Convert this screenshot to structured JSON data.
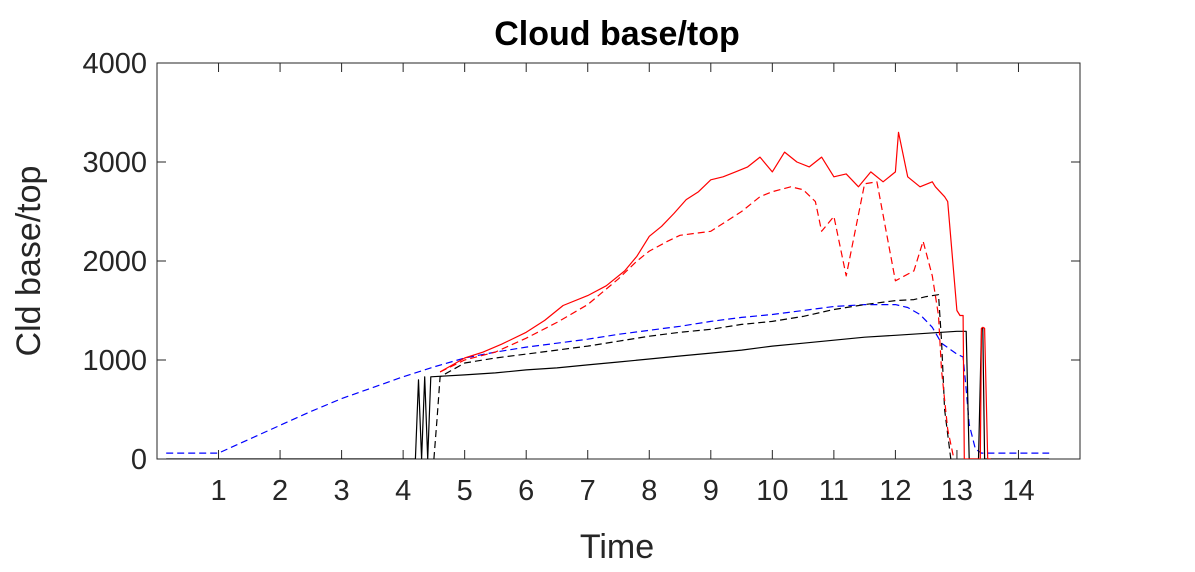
{
  "chart_data": {
    "type": "line",
    "title": "Cloud base/top",
    "xlabel": "Time",
    "ylabel": "Cld base/top",
    "xlim": [
      0,
      15
    ],
    "ylim": [
      0,
      4000
    ],
    "xticks": [
      1,
      2,
      3,
      4,
      5,
      6,
      7,
      8,
      9,
      10,
      11,
      12,
      13,
      14
    ],
    "yticks": [
      0,
      1000,
      2000,
      3000,
      4000
    ],
    "grid": false,
    "legend": "none",
    "series": [
      {
        "color": "#0000ff",
        "style": "dashed",
        "x": [
          0.15,
          1.0,
          1.5,
          2.0,
          2.5,
          3.0,
          3.5,
          4.0,
          4.5,
          5.0,
          5.5,
          6.0,
          6.5,
          7.0,
          7.5,
          8.0,
          8.5,
          9.0,
          9.5,
          10.0,
          10.5,
          11.0,
          11.5,
          12.0,
          12.2,
          12.4,
          12.6,
          12.75,
          13.0,
          13.1,
          13.15,
          13.2,
          13.3,
          13.4,
          13.5,
          14.0,
          14.5
        ],
        "y": [
          60,
          60,
          200,
          340,
          480,
          610,
          720,
          830,
          930,
          1020,
          1080,
          1130,
          1170,
          1210,
          1260,
          1300,
          1340,
          1390,
          1430,
          1460,
          1500,
          1540,
          1560,
          1560,
          1530,
          1460,
          1330,
          1170,
          1060,
          1030,
          700,
          350,
          100,
          60,
          60,
          60,
          60
        ]
      },
      {
        "color": "#000000",
        "style": "dashed",
        "x": [
          4.5,
          4.55,
          4.6,
          5.0,
          5.5,
          6.0,
          6.5,
          7.0,
          7.5,
          8.0,
          8.5,
          9.0,
          9.5,
          10.0,
          10.5,
          11.0,
          11.5,
          12.0,
          12.3,
          12.5,
          12.7,
          12.75,
          12.8,
          12.9
        ],
        "y": [
          0,
          400,
          830,
          970,
          1020,
          1060,
          1100,
          1140,
          1190,
          1240,
          1280,
          1310,
          1360,
          1390,
          1440,
          1510,
          1560,
          1600,
          1610,
          1640,
          1660,
          1200,
          500,
          0
        ]
      },
      {
        "color": "#000000",
        "style": "solid",
        "x": [
          0.15,
          4.2,
          4.25,
          4.3,
          4.35,
          4.4,
          4.45,
          5.0,
          5.5,
          6.0,
          6.5,
          7.0,
          7.5,
          8.0,
          8.5,
          9.0,
          9.5,
          10.0,
          10.5,
          11.0,
          11.5,
          12.0,
          12.5,
          13.0,
          13.15,
          13.2,
          13.25,
          13.35,
          13.4,
          13.42,
          13.45,
          13.48,
          14.5
        ],
        "y": [
          0,
          0,
          800,
          0,
          830,
          0,
          830,
          850,
          870,
          900,
          920,
          950,
          980,
          1010,
          1040,
          1070,
          1100,
          1140,
          1170,
          1200,
          1230,
          1250,
          1270,
          1290,
          1290,
          0,
          0,
          0,
          1320,
          1320,
          0,
          0,
          0
        ]
      },
      {
        "color": "#ff0000",
        "style": "dashed",
        "x": [
          4.6,
          5.0,
          5.5,
          6.0,
          6.5,
          7.0,
          7.5,
          7.8,
          8.0,
          8.3,
          8.5,
          9.0,
          9.5,
          9.8,
          10.0,
          10.3,
          10.5,
          10.7,
          10.8,
          11.0,
          11.2,
          11.5,
          11.7,
          12.0,
          12.3,
          12.45,
          12.6,
          12.7,
          12.75,
          12.85,
          12.95
        ],
        "y": [
          880,
          1000,
          1080,
          1220,
          1380,
          1560,
          1820,
          2000,
          2100,
          2200,
          2260,
          2300,
          2500,
          2650,
          2700,
          2750,
          2720,
          2600,
          2300,
          2450,
          1850,
          2780,
          2800,
          1800,
          1900,
          2200,
          1850,
          1450,
          900,
          300,
          0
        ]
      },
      {
        "color": "#ff0000",
        "style": "solid",
        "x": [
          4.6,
          5.0,
          5.3,
          5.6,
          6.0,
          6.3,
          6.6,
          7.0,
          7.3,
          7.6,
          7.8,
          8.0,
          8.2,
          8.4,
          8.6,
          8.8,
          9.0,
          9.2,
          9.4,
          9.6,
          9.8,
          10.0,
          10.2,
          10.4,
          10.6,
          10.8,
          11.0,
          11.2,
          11.4,
          11.6,
          11.8,
          12.0,
          12.05,
          12.2,
          12.4,
          12.6,
          12.65,
          12.8,
          12.85,
          13.0,
          13.05,
          13.1,
          13.12,
          13.2,
          13.25,
          13.3,
          13.38,
          13.4,
          13.42,
          13.45,
          13.5,
          13.55
        ],
        "y": [
          880,
          1020,
          1080,
          1160,
          1280,
          1400,
          1550,
          1650,
          1750,
          1900,
          2050,
          2250,
          2350,
          2480,
          2620,
          2700,
          2820,
          2850,
          2900,
          2950,
          3050,
          2900,
          3100,
          3000,
          2950,
          3050,
          2850,
          2880,
          2750,
          2900,
          2800,
          2900,
          3300,
          2850,
          2750,
          2800,
          2750,
          2650,
          2600,
          1500,
          1450,
          1450,
          0,
          0,
          0,
          0,
          0,
          1320,
          1330,
          1320,
          0,
          0
        ]
      }
    ]
  }
}
